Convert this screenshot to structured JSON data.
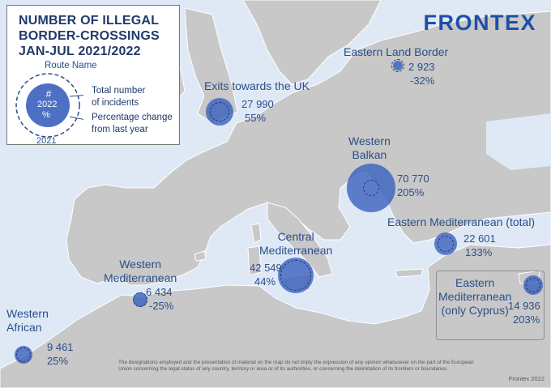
{
  "legend": {
    "title": "NUMBER OF ILLEGAL\nBORDER-CROSSINGS\nJAN-JUL 2021/2022",
    "route_name": "Route Name",
    "symbol_hash": "#",
    "symbol_year": "2022",
    "symbol_percent": "%",
    "year_prev": "2021",
    "label_total": "Total number\nof incidents",
    "label_change": "Percentage change\nfrom last year"
  },
  "brand": "FRONTEX",
  "routes": {
    "eastern_land": {
      "name": "Eastern Land Border",
      "total": "2 923",
      "change": "-32%",
      "total_2022": 2923,
      "change_pct": -32
    },
    "uk": {
      "name": "Exits towards the UK",
      "total": "27 990",
      "change": "55%",
      "total_2022": 27990,
      "change_pct": 55
    },
    "western_balkan": {
      "name": "Western\nBalkan",
      "total": "70 770",
      "change": "205%",
      "total_2022": 70770,
      "change_pct": 205
    },
    "eastern_med_total": {
      "name": "Eastern Mediterranean (total)",
      "total": "22 601",
      "change": "133%",
      "total_2022": 22601,
      "change_pct": 133
    },
    "central_med": {
      "name": "Central\nMediterranean",
      "total": "42 549",
      "change": "44%",
      "total_2022": 42549,
      "change_pct": 44
    },
    "western_med": {
      "name": "Western\nMediterranean",
      "total": "6 434",
      "change": "-25%",
      "total_2022": 6434,
      "change_pct": -25
    },
    "western_african": {
      "name": "Western\nAfrican",
      "total": "9 461",
      "change": "25%",
      "total_2022": 9461,
      "change_pct": 25
    },
    "eastern_med_cyprus": {
      "name": "Eastern\nMediterranean\n(only Cyprus)",
      "total": "14 936",
      "change": "203%",
      "total_2022": 14936,
      "change_pct": 203
    }
  },
  "colors": {
    "sea": "#dfe9f5",
    "land": "#c8c8c8",
    "bubble": "#3a60be",
    "text": "#2a4f8a",
    "brand": "#1e4fa8"
  },
  "disclaimer": "The designations employed and the presentation of material on the map do not imply the expression of any opinion whatsoever on the part of the European Union concerning the legal status of any country, territory or area or of its authorities, or concerning the delimitation of its frontiers or boundaries.",
  "credit": "Frontex 2022"
}
